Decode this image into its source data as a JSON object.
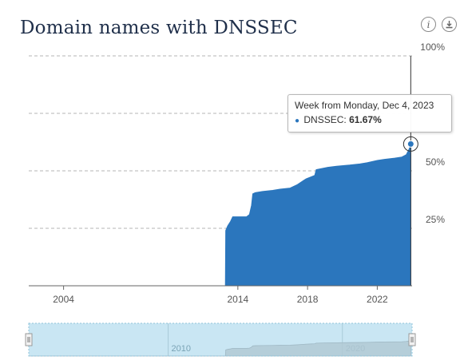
{
  "title": "Domain names with DNSSEC",
  "icons": {
    "info": "info-icon",
    "download": "download-icon"
  },
  "colors": {
    "series": "#2b76bd",
    "navigator_fill": "#c9e6f3",
    "navigator_series": "#b2c9d4",
    "grid": "#b5b5b5"
  },
  "tooltip": {
    "header": "Week from Monday, Dec 4, 2023",
    "series_name": "DNSSEC",
    "value_label": "61.67%"
  },
  "chart_data": {
    "type": "area",
    "y_axis": {
      "min": 0,
      "max": 100,
      "ticks": [
        25,
        50,
        100
      ],
      "tick_labels": [
        "25%",
        "50%",
        "100%"
      ],
      "grid": true,
      "position": "right"
    },
    "x_axis": {
      "range": [
        "2002-01-01",
        "2024-01-01"
      ],
      "tick_labels": [
        "2004",
        "2014",
        "2018",
        "2022"
      ],
      "tick_years": [
        2004,
        2014,
        2018,
        2022
      ]
    },
    "navigator": {
      "range": [
        "2002-01-01",
        "2024-01-01"
      ],
      "tick_labels": [
        "2010",
        "2020"
      ],
      "tick_years": [
        2010,
        2020
      ]
    },
    "series": [
      {
        "name": "DNSSEC",
        "points": [
          [
            "2002-01-01",
            0
          ],
          [
            "2013-04-15",
            0
          ],
          [
            "2013-04-22",
            24
          ],
          [
            "2013-06-01",
            26
          ],
          [
            "2013-08-01",
            28
          ],
          [
            "2013-09-15",
            30
          ],
          [
            "2014-07-01",
            30
          ],
          [
            "2014-09-01",
            31
          ],
          [
            "2014-10-15",
            35
          ],
          [
            "2014-11-10",
            40
          ],
          [
            "2015-01-01",
            40.5
          ],
          [
            "2015-06-01",
            41
          ],
          [
            "2016-01-01",
            41.5
          ],
          [
            "2016-06-01",
            42
          ],
          [
            "2017-01-01",
            42.5
          ],
          [
            "2017-06-01",
            44
          ],
          [
            "2017-12-01",
            46.5
          ],
          [
            "2018-04-01",
            47.5
          ],
          [
            "2018-06-01",
            48
          ],
          [
            "2018-07-01",
            50.5
          ],
          [
            "2019-03-01",
            51.5
          ],
          [
            "2019-09-01",
            52
          ],
          [
            "2020-06-01",
            52.5
          ],
          [
            "2021-01-01",
            53
          ],
          [
            "2021-06-01",
            53.5
          ],
          [
            "2022-01-01",
            54.5
          ],
          [
            "2022-06-01",
            55
          ],
          [
            "2023-01-01",
            55.5
          ],
          [
            "2023-06-01",
            56
          ],
          [
            "2023-09-01",
            57
          ],
          [
            "2023-11-01",
            59.5
          ],
          [
            "2023-12-04",
            61.67
          ]
        ]
      }
    ],
    "highlight": {
      "date": "2023-12-04",
      "value": 61.67
    }
  }
}
